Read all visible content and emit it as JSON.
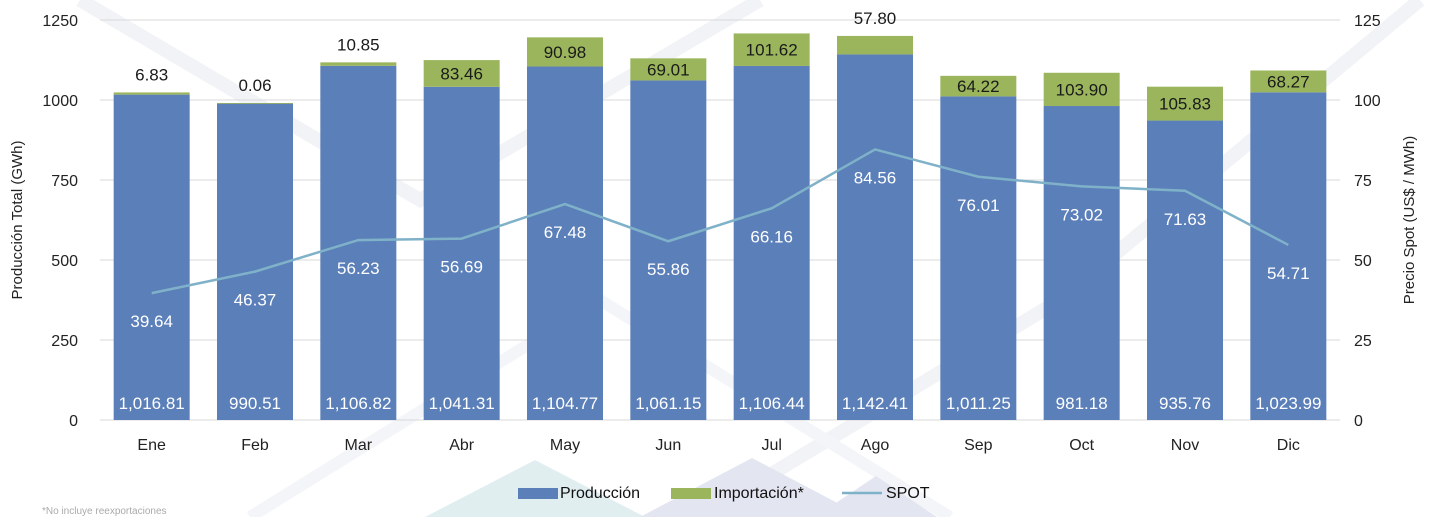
{
  "chart_data": {
    "type": "bar",
    "stacked": true,
    "categories": [
      "Ene",
      "Feb",
      "Mar",
      "Abr",
      "May",
      "Jun",
      "Jul",
      "Ago",
      "Sep",
      "Oct",
      "Nov",
      "Dic"
    ],
    "series": [
      {
        "name": "Producción",
        "axis": "left",
        "color": "#5b7fb9",
        "values": [
          1016.81,
          990.51,
          1106.82,
          1041.31,
          1104.77,
          1061.15,
          1106.44,
          1142.41,
          1011.25,
          981.18,
          935.76,
          1023.99
        ],
        "labels": [
          "1,016.81",
          "990.51",
          "1,106.82",
          "1,041.31",
          "1,104.77",
          "1,061.15",
          "1,106.44",
          "1,142.41",
          "1,011.25",
          "981.18",
          "935.76",
          "1,023.99"
        ]
      },
      {
        "name": "Importación*",
        "axis": "left",
        "color": "#9bb55c",
        "values": [
          6.83,
          0.06,
          10.85,
          83.46,
          90.98,
          69.01,
          101.62,
          57.8,
          64.22,
          103.9,
          105.83,
          68.27
        ],
        "labels": [
          "6.83",
          "0.06",
          "10.85",
          "83.46",
          "90.98",
          "69.01",
          "101.62",
          "57.80",
          "64.22",
          "103.90",
          "105.83",
          "68.27"
        ]
      },
      {
        "name": "SPOT",
        "axis": "right",
        "type": "line",
        "color": "#7fb2c9",
        "values": [
          39.64,
          46.37,
          56.23,
          56.69,
          67.48,
          55.86,
          66.16,
          84.56,
          76.01,
          73.02,
          71.63,
          54.71
        ],
        "labels": [
          "39.64",
          "46.37",
          "56.23",
          "56.69",
          "67.48",
          "55.86",
          "66.16",
          "84.56",
          "76.01",
          "73.02",
          "71.63",
          "54.71"
        ]
      }
    ],
    "ylabel": "Producción Total (GWh)",
    "y2label": "Precio Spot (US$ / MWh)",
    "ylim": [
      0,
      1250
    ],
    "y2lim": [
      0,
      125
    ],
    "yticks": [
      "0",
      "250",
      "500",
      "750",
      "1000",
      "1250"
    ],
    "y2ticks": [
      "0",
      "25",
      "50",
      "75",
      "100",
      "125"
    ],
    "grid": true,
    "legend_position": "bottom-center",
    "footnote": "*No incluye reexportaciones"
  }
}
